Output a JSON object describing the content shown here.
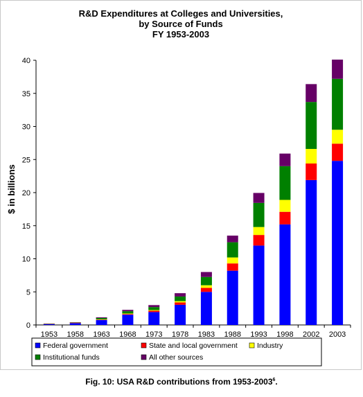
{
  "chart_data": {
    "type": "bar",
    "stacked": true,
    "title": [
      "R&D Expenditures at Colleges and Universities,",
      "by Source of Funds",
      "FY 1953-2003"
    ],
    "ylabel": "$ in billions",
    "ylim": [
      0,
      40
    ],
    "yticks": [
      0,
      5,
      10,
      15,
      20,
      25,
      30,
      35,
      40
    ],
    "categories": [
      "1953",
      "1958",
      "1963",
      "1968",
      "1973",
      "1978",
      "1983",
      "1988",
      "1993",
      "1998",
      "2002",
      "2003"
    ],
    "series": [
      {
        "name": "Federal government",
        "color": "#0000ff",
        "values": [
          0.14,
          0.3,
          0.75,
          1.55,
          1.95,
          3.05,
          5.0,
          8.2,
          12.0,
          15.2,
          21.9,
          24.8
        ]
      },
      {
        "name": "State and local government",
        "color": "#ff0000",
        "values": [
          0.02,
          0.03,
          0.05,
          0.1,
          0.2,
          0.35,
          0.6,
          1.1,
          1.6,
          1.9,
          2.5,
          2.6
        ]
      },
      {
        "name": "Industry",
        "color": "#ffff00",
        "values": [
          0.01,
          0.02,
          0.05,
          0.08,
          0.1,
          0.2,
          0.4,
          0.9,
          1.2,
          1.8,
          2.2,
          2.1
        ]
      },
      {
        "name": "Institutional funds",
        "color": "#008000",
        "values": [
          0.02,
          0.05,
          0.2,
          0.35,
          0.45,
          0.7,
          1.25,
          2.3,
          3.65,
          5.1,
          7.1,
          7.7
        ]
      },
      {
        "name": "All other sources",
        "color": "#660066",
        "values": [
          0.01,
          0.02,
          0.1,
          0.2,
          0.3,
          0.5,
          0.75,
          1.0,
          1.5,
          1.9,
          2.7,
          2.9
        ]
      }
    ],
    "grid": false,
    "legend_position": "bottom"
  },
  "caption": {
    "text": "Fig. 10: USA R&D contributions from 1953-2003",
    "superscript": "6",
    "suffix": "."
  }
}
